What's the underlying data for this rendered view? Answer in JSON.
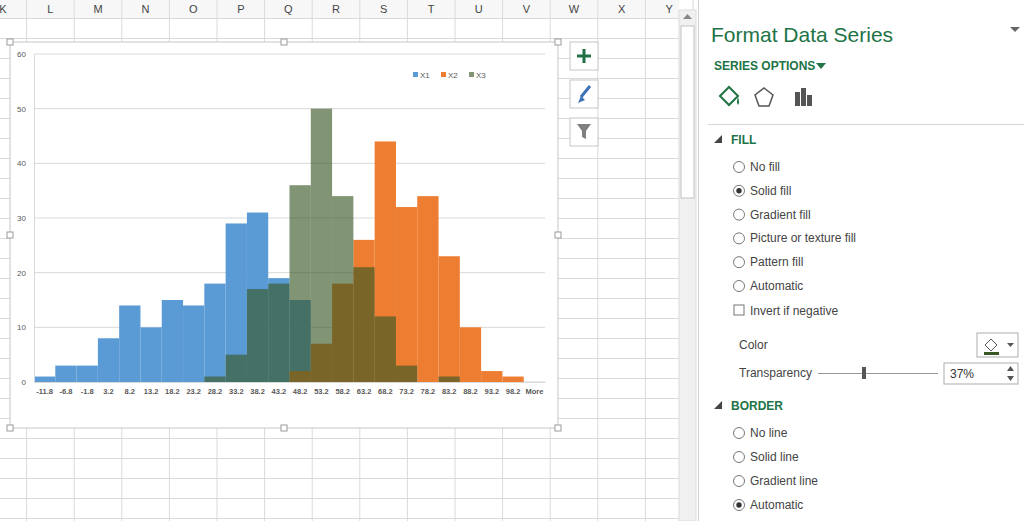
{
  "spreadsheet": {
    "columns": [
      "K",
      "L",
      "M",
      "N",
      "O",
      "P",
      "Q",
      "R",
      "S",
      "T",
      "U",
      "V",
      "W",
      "X",
      "Y"
    ]
  },
  "chart_data": {
    "type": "bar",
    "categories": [
      "-11.8",
      "-6.8",
      "-1.8",
      "3.2",
      "8.2",
      "13.2",
      "18.2",
      "23.2",
      "28.2",
      "33.2",
      "38.2",
      "43.2",
      "48.2",
      "53.2",
      "58.2",
      "63.2",
      "68.2",
      "73.2",
      "78.2",
      "83.2",
      "88.2",
      "93.2",
      "98.2",
      "More"
    ],
    "series": [
      {
        "name": "X1",
        "color": "#5b9bd5",
        "values": [
          1,
          3,
          3,
          8,
          14,
          10,
          15,
          14,
          18,
          29,
          31,
          19,
          15,
          0,
          0,
          0,
          0,
          0,
          0,
          0,
          0,
          0,
          0,
          0
        ]
      },
      {
        "name": "X2",
        "color": "#ed7d31",
        "values": [
          0,
          0,
          0,
          0,
          0,
          0,
          0,
          0,
          0,
          0,
          0,
          0,
          2,
          7,
          18,
          26,
          44,
          32,
          34,
          23,
          10,
          2,
          1,
          0
        ]
      },
      {
        "name": "X3",
        "color": "#385723",
        "values": [
          0,
          0,
          0,
          0,
          0,
          0,
          0,
          0,
          1,
          5,
          17,
          18,
          36,
          50,
          34,
          21,
          12,
          3,
          0,
          1,
          0,
          0,
          0,
          0
        ]
      }
    ],
    "ylim": [
      0,
      60
    ],
    "yticks": [
      0,
      10,
      20,
      30,
      40,
      50,
      60
    ],
    "grid": true,
    "legend": "top-right"
  },
  "panel": {
    "title": "Format Data Series",
    "tab": "SERIES OPTIONS",
    "sections": [
      {
        "title": "FILL",
        "options": [
          {
            "label": "No fill",
            "selected": false
          },
          {
            "label": "Solid fill",
            "selected": true
          },
          {
            "label": "Gradient fill",
            "selected": false
          },
          {
            "label": "Picture or texture fill",
            "selected": false
          },
          {
            "label": "Pattern fill",
            "selected": false
          },
          {
            "label": "Automatic",
            "selected": false
          }
        ],
        "checkbox": {
          "label": "Invert if negative",
          "checked": false
        },
        "color_label": "Color",
        "transparency_label": "Transparency",
        "transparency": "37%"
      },
      {
        "title": "BORDER",
        "options": [
          {
            "label": "No line",
            "selected": false
          },
          {
            "label": "Solid line",
            "selected": false
          },
          {
            "label": "Gradient line",
            "selected": false
          },
          {
            "label": "Automatic",
            "selected": true
          }
        ]
      }
    ]
  }
}
